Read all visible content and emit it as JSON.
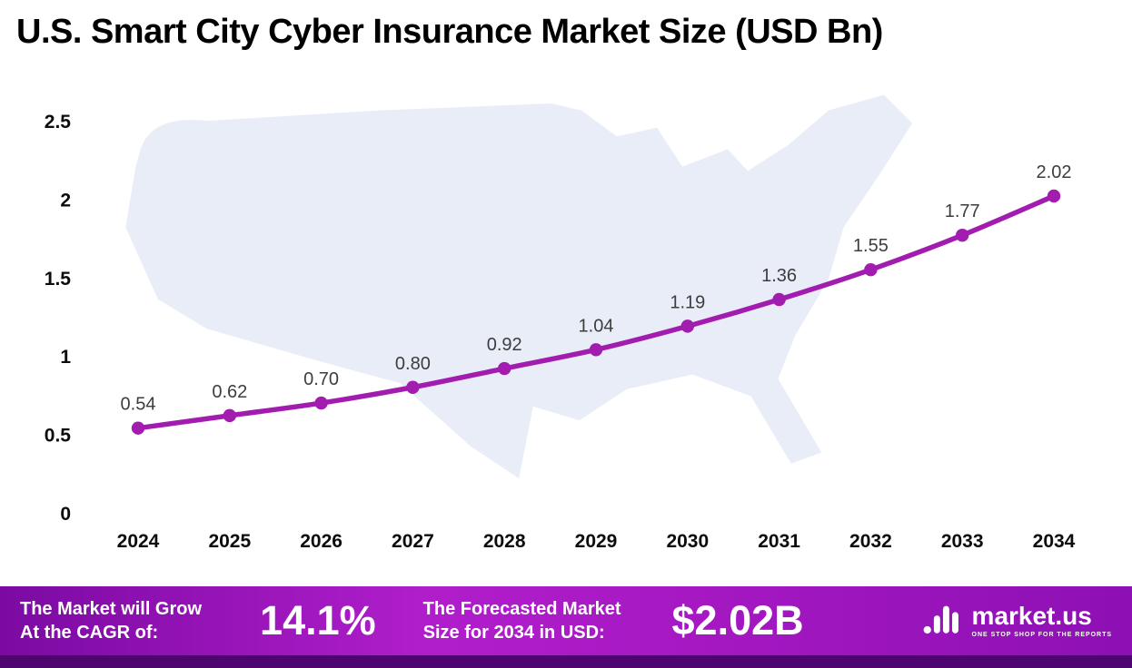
{
  "title": "U.S. Smart City Cyber Insurance Market Size (USD Bn)",
  "chart_data": {
    "type": "line",
    "title": "U.S. Smart City Cyber Insurance Market Size (USD Bn)",
    "categories": [
      "2024",
      "2025",
      "2026",
      "2027",
      "2028",
      "2029",
      "2030",
      "2031",
      "2032",
      "2033",
      "2034"
    ],
    "values": [
      0.54,
      0.62,
      0.7,
      0.8,
      0.92,
      1.04,
      1.19,
      1.36,
      1.55,
      1.77,
      2.02
    ],
    "value_labels": [
      "0.54",
      "0.62",
      "0.70",
      "0.80",
      "0.92",
      "1.04",
      "1.19",
      "1.36",
      "1.55",
      "1.77",
      "2.02"
    ],
    "xlabel": "",
    "ylabel": "",
    "ylim": [
      0,
      2.5
    ],
    "yticks": [
      0,
      0.5,
      1,
      1.5,
      2,
      2.5
    ],
    "ytick_labels": [
      "0",
      "0.5",
      "1",
      "1.5",
      "2",
      "2.5"
    ],
    "grid": false,
    "legend": "none",
    "line_color": "#a21caf",
    "marker_color": "#a21caf",
    "label_color": "#3d3d3d",
    "background_silhouette": "us-map",
    "map_color": "#e9edf8"
  },
  "footer": {
    "cagr_label_line1": "The Market will Grow",
    "cagr_label_line2": "At the CAGR of:",
    "cagr_value": "14.1%",
    "forecast_label_line1": "The Forecasted Market",
    "forecast_label_line2": "Size for 2034 in USD:",
    "forecast_value": "$2.02B",
    "brand_name": "market.us",
    "brand_tagline": "ONE STOP SHOP FOR THE REPORTS",
    "gradient_start": "#7b0aa2",
    "gradient_end": "#8d10b4",
    "strip_color": "#4f0570"
  }
}
